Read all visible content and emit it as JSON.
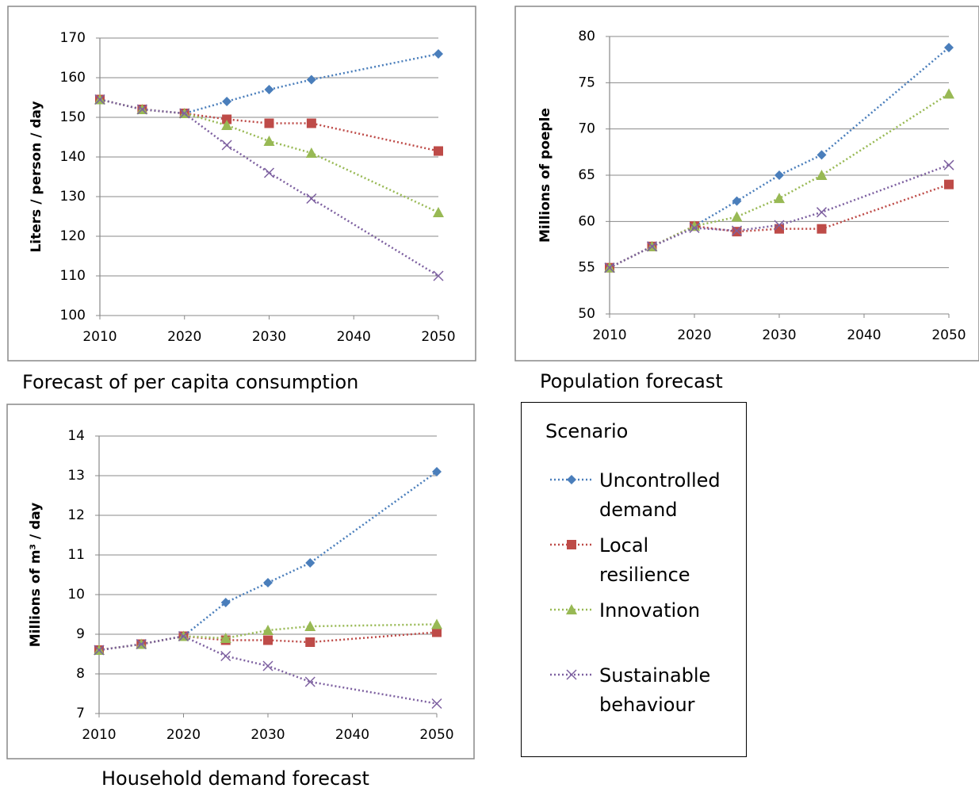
{
  "chart_data": [
    {
      "type": "line",
      "title": "Forecast of per capita consumption",
      "y_label": "Liters / person / day",
      "x": [
        2010,
        2015,
        2020,
        2025,
        2030,
        2035,
        2050
      ],
      "xlim": [
        2010,
        2050
      ],
      "xticks": [
        2010,
        2020,
        2030,
        2040,
        2050
      ],
      "ylim": [
        100,
        170
      ],
      "yticks": [
        100,
        110,
        120,
        130,
        140,
        150,
        160,
        170
      ],
      "grid": true,
      "series": [
        {
          "name": "Uncontrolled demand",
          "color": "#4a7ebb",
          "marker": "diamond",
          "values": [
            154.5,
            152,
            151,
            154,
            157,
            159.5,
            166
          ]
        },
        {
          "name": "Local resilience",
          "color": "#be4b48",
          "marker": "square",
          "values": [
            154.5,
            152,
            151,
            149.5,
            148.5,
            148.5,
            141.5
          ]
        },
        {
          "name": "Innovation",
          "color": "#98b954",
          "marker": "triangle",
          "values": [
            154.5,
            152,
            151,
            148,
            144,
            141,
            126
          ]
        },
        {
          "name": "Sustainable behaviour",
          "color": "#7d60a0",
          "marker": "x",
          "values": [
            154.5,
            152,
            151,
            143,
            136,
            129.5,
            110
          ]
        }
      ]
    },
    {
      "type": "line",
      "title": "Population forecast",
      "y_label": "Millions of poeple",
      "x": [
        2010,
        2015,
        2020,
        2025,
        2030,
        2035,
        2050
      ],
      "xlim": [
        2010,
        2050
      ],
      "xticks": [
        2010,
        2020,
        2030,
        2040,
        2050
      ],
      "ylim": [
        50,
        80
      ],
      "yticks": [
        50,
        55,
        60,
        65,
        70,
        75,
        80
      ],
      "grid": true,
      "series": [
        {
          "name": "Uncontrolled demand",
          "color": "#4a7ebb",
          "marker": "diamond",
          "values": [
            55,
            57.3,
            59.5,
            62.2,
            65,
            67.2,
            78.8
          ]
        },
        {
          "name": "Local resilience",
          "color": "#be4b48",
          "marker": "square",
          "values": [
            55,
            57.3,
            59.5,
            58.9,
            59.2,
            59.2,
            64
          ]
        },
        {
          "name": "Innovation",
          "color": "#98b954",
          "marker": "triangle",
          "values": [
            55,
            57.3,
            59.5,
            60.5,
            62.5,
            65,
            73.8
          ]
        },
        {
          "name": "Sustainable behaviour",
          "color": "#7d60a0",
          "marker": "x",
          "values": [
            55,
            57.3,
            59.3,
            59,
            59.6,
            61,
            66.1
          ]
        }
      ]
    },
    {
      "type": "line",
      "title": "Household demand forecast",
      "y_label": "Millions of  m³ / day",
      "x": [
        2010,
        2015,
        2020,
        2025,
        2030,
        2035,
        2050
      ],
      "xlim": [
        2010,
        2050
      ],
      "xticks": [
        2010,
        2020,
        2030,
        2040,
        2050
      ],
      "ylim": [
        7,
        14
      ],
      "yticks": [
        7,
        8,
        9,
        10,
        11,
        12,
        13,
        14
      ],
      "grid": true,
      "series": [
        {
          "name": "Uncontrolled demand",
          "color": "#4a7ebb",
          "marker": "diamond",
          "values": [
            8.6,
            8.75,
            8.95,
            9.8,
            10.3,
            10.8,
            13.1
          ]
        },
        {
          "name": "Local resilience",
          "color": "#be4b48",
          "marker": "square",
          "values": [
            8.6,
            8.75,
            8.95,
            8.85,
            8.85,
            8.8,
            9.05
          ]
        },
        {
          "name": "Innovation",
          "color": "#98b954",
          "marker": "triangle",
          "values": [
            8.6,
            8.75,
            8.95,
            8.9,
            9.1,
            9.2,
            9.25
          ]
        },
        {
          "name": "Sustainable behaviour",
          "color": "#7d60a0",
          "marker": "x",
          "values": [
            8.6,
            8.75,
            8.95,
            8.45,
            8.2,
            7.8,
            7.25
          ]
        }
      ]
    }
  ],
  "legend_title": "Scenario"
}
